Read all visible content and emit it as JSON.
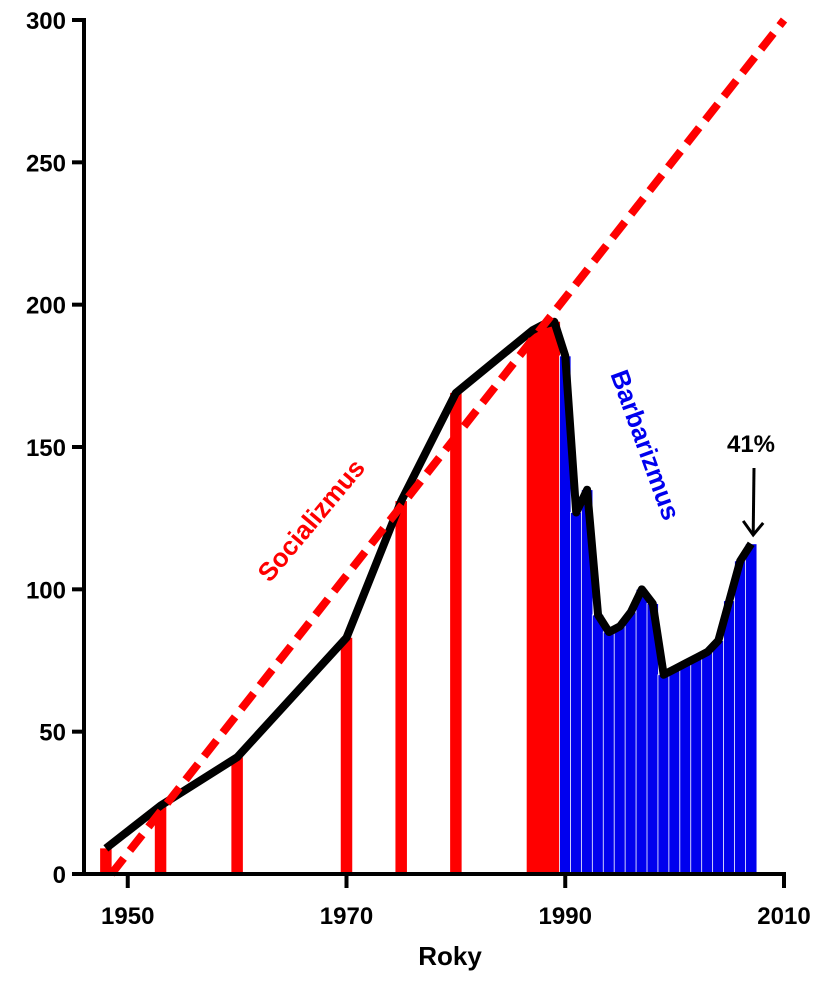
{
  "colors": {
    "background": "#ffffff",
    "axis": "#000000",
    "socialism": "#ff0000",
    "barbarism": "#0000ee",
    "bar_edge": "#ffffff",
    "line": "#000000"
  },
  "chart_data": {
    "type": "bar",
    "title": "",
    "xlabel": "Roky",
    "ylabel": "",
    "xlim": [
      1946,
      2010
    ],
    "ylim": [
      0,
      300
    ],
    "x_ticks": [
      1950,
      1970,
      1990,
      2010
    ],
    "y_ticks": [
      0,
      50,
      100,
      150,
      200,
      250,
      300
    ],
    "grid": false,
    "series": [
      {
        "type": "bar",
        "color": "#ff0000",
        "points": [
          {
            "x": 1948,
            "y": 9
          },
          {
            "x": 1953,
            "y": 24
          },
          {
            "x": 1960,
            "y": 41
          },
          {
            "x": 1970,
            "y": 83
          },
          {
            "x": 1975,
            "y": 131
          },
          {
            "x": 1980,
            "y": 169
          },
          {
            "x": 1987,
            "y": 191
          },
          {
            "x": 1988,
            "y": 193
          },
          {
            "x": 1989,
            "y": 194
          }
        ]
      },
      {
        "type": "bar",
        "color": "#0000ee",
        "points": [
          {
            "x": 1990,
            "y": 182
          },
          {
            "x": 1991,
            "y": 127
          },
          {
            "x": 1992,
            "y": 135
          },
          {
            "x": 1993,
            "y": 91
          },
          {
            "x": 1994,
            "y": 85
          },
          {
            "x": 1995,
            "y": 87
          },
          {
            "x": 1996,
            "y": 92
          },
          {
            "x": 1997,
            "y": 100
          },
          {
            "x": 1998,
            "y": 95
          },
          {
            "x": 1999,
            "y": 70
          },
          {
            "x": 2000,
            "y": 72
          },
          {
            "x": 2001,
            "y": 74
          },
          {
            "x": 2002,
            "y": 76
          },
          {
            "x": 2003,
            "y": 78
          },
          {
            "x": 2004,
            "y": 82
          },
          {
            "x": 2005,
            "y": 96
          },
          {
            "x": 2006,
            "y": 110
          },
          {
            "x": 2007,
            "y": 116
          }
        ]
      },
      {
        "type": "line",
        "style": "solid",
        "color": "#000000",
        "points": [
          {
            "x": 1948,
            "y": 9
          },
          {
            "x": 1953,
            "y": 24
          },
          {
            "x": 1960,
            "y": 41
          },
          {
            "x": 1970,
            "y": 83
          },
          {
            "x": 1975,
            "y": 131
          },
          {
            "x": 1980,
            "y": 169
          },
          {
            "x": 1987,
            "y": 191
          },
          {
            "x": 1988,
            "y": 193
          },
          {
            "x": 1989,
            "y": 194
          },
          {
            "x": 1990,
            "y": 182
          },
          {
            "x": 1991,
            "y": 127
          },
          {
            "x": 1992,
            "y": 135
          },
          {
            "x": 1993,
            "y": 91
          },
          {
            "x": 1994,
            "y": 85
          },
          {
            "x": 1995,
            "y": 87
          },
          {
            "x": 1996,
            "y": 92
          },
          {
            "x": 1997,
            "y": 100
          },
          {
            "x": 1998,
            "y": 95
          },
          {
            "x": 1999,
            "y": 70
          },
          {
            "x": 2000,
            "y": 72
          },
          {
            "x": 2001,
            "y": 74
          },
          {
            "x": 2002,
            "y": 76
          },
          {
            "x": 2003,
            "y": 78
          },
          {
            "x": 2004,
            "y": 82
          },
          {
            "x": 2005,
            "y": 96
          },
          {
            "x": 2006,
            "y": 110
          },
          {
            "x": 2007,
            "y": 116
          }
        ]
      },
      {
        "type": "line",
        "style": "dashed",
        "color": "#ff0000",
        "points": [
          {
            "x": 1948.5,
            "y": 0
          },
          {
            "x": 2010,
            "y": 300
          }
        ]
      }
    ],
    "annotations": [
      {
        "text": "Socializmus",
        "color": "#ff0000",
        "rotated": true
      },
      {
        "text": "Barbarizmus",
        "color": "#0000ee",
        "rotated": true
      },
      {
        "text": "41%",
        "color": "#000000",
        "arrow_to": {
          "x": 2007,
          "y": 117
        }
      }
    ]
  }
}
